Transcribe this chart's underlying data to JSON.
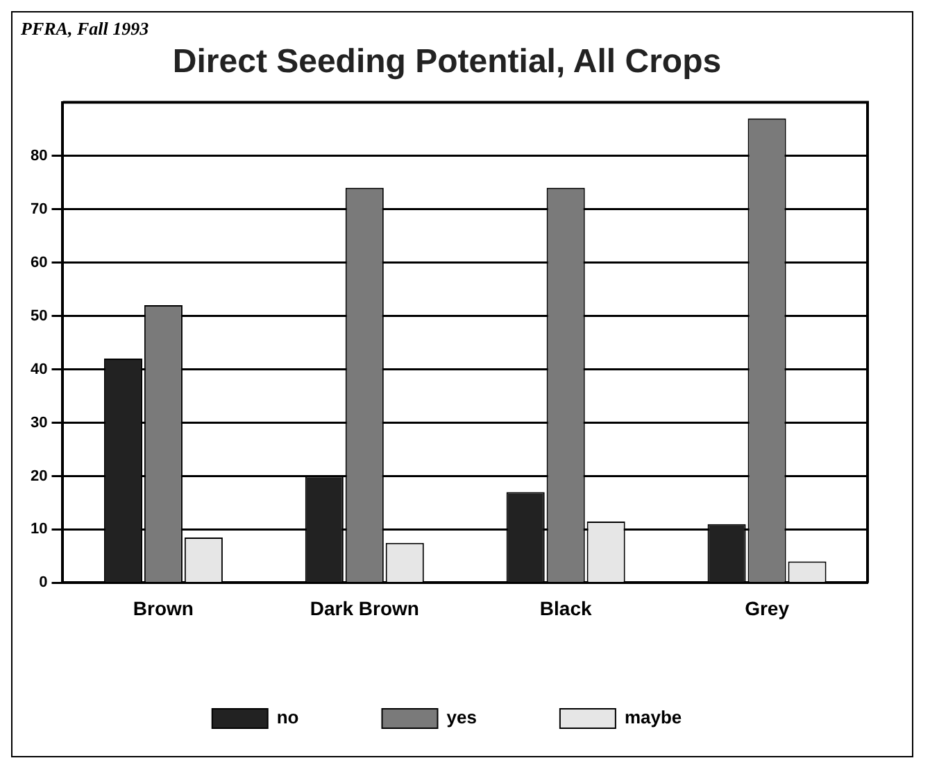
{
  "chart_data": {
    "type": "bar",
    "title": "Direct Seeding Potential, All Crops",
    "annotations": [
      "PFRA, Fall 1993"
    ],
    "categories": [
      "Brown",
      "Dark Brown",
      "Black",
      "Grey"
    ],
    "series": [
      {
        "name": "no",
        "color": "#222222",
        "values": [
          42,
          20,
          17,
          11
        ]
      },
      {
        "name": "yes",
        "color": "#7a7a7a",
        "values": [
          52,
          74,
          74,
          87
        ]
      },
      {
        "name": "maybe",
        "color": "#e6e6e6",
        "values": [
          8.5,
          7.5,
          11.5,
          4
        ]
      }
    ],
    "ylim": [
      0,
      90
    ],
    "yticks": [
      0,
      10,
      20,
      30,
      40,
      50,
      60,
      70,
      80
    ],
    "grid": "y",
    "legend": "bottom"
  }
}
